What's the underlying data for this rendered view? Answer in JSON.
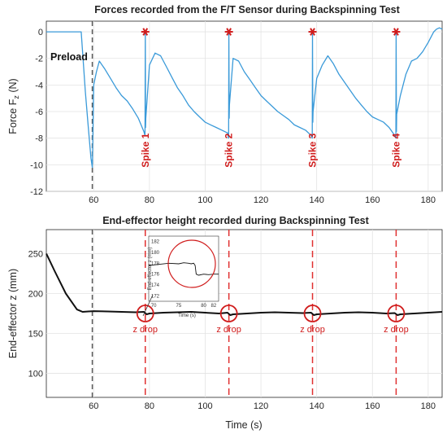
{
  "chart_data": [
    {
      "type": "line",
      "title": "Forces recorded from the F/T Sensor during Backspinning Test",
      "xlabel": "",
      "ylabel": "Force F",
      "ylabel_sub": "z",
      "ylabel_unit": " (N)",
      "xlim": [
        43,
        185
      ],
      "ylim": [
        -12,
        0.8
      ],
      "xticks": [
        60,
        80,
        100,
        120,
        140,
        160,
        180
      ],
      "yticks": [
        0,
        -2,
        -4,
        -6,
        -8,
        -10,
        -12
      ],
      "grid": true,
      "series": [
        {
          "color": "#3a9ad9",
          "x": [
            43,
            53,
            55.5,
            56,
            57,
            58,
            58.6,
            59,
            59.5,
            60,
            61,
            62,
            64,
            66,
            68,
            70,
            72,
            74,
            76,
            78,
            78.4,
            78.5,
            78.6,
            78.7,
            80,
            82,
            84,
            86,
            88,
            90,
            92,
            94,
            96,
            98,
            100,
            102,
            104,
            106,
            108,
            108.4,
            108.5,
            108.6,
            108.7,
            110,
            112,
            114,
            116,
            118,
            120,
            122,
            124,
            126,
            128,
            130,
            132,
            134,
            136,
            138,
            138.4,
            138.5,
            138.6,
            138.7,
            140,
            142,
            144,
            146,
            148,
            150,
            152,
            154,
            156,
            158,
            160,
            162,
            164,
            166,
            168,
            168.4,
            168.5,
            168.6,
            168.7,
            170,
            172,
            174,
            176,
            178,
            180,
            182,
            183,
            184,
            185
          ],
          "values": [
            0,
            0,
            0,
            -1.5,
            -4.5,
            -7,
            -8.5,
            -9.5,
            -10.2,
            -4,
            -3,
            -2.2,
            -2.8,
            -3.5,
            -4.2,
            -4.8,
            -5.2,
            -5.8,
            -6.5,
            -7.5,
            -7.8,
            0,
            -7.2,
            -6.5,
            -2.5,
            -1.6,
            -1.8,
            -2.6,
            -3.4,
            -4.2,
            -4.8,
            -5.5,
            -6,
            -6.4,
            -6.8,
            -7,
            -7.2,
            -7.4,
            -7.6,
            -8,
            0,
            -6.5,
            -5.5,
            -2,
            -2.2,
            -3,
            -3.6,
            -4.2,
            -4.8,
            -5.2,
            -5.6,
            -6,
            -6.3,
            -6.6,
            -7,
            -7.2,
            -7.4,
            -7.8,
            -8,
            0,
            -6.8,
            -6,
            -3.5,
            -2.5,
            -1.8,
            -2.4,
            -3.2,
            -3.8,
            -4.4,
            -5,
            -5.5,
            -6,
            -6.4,
            -6.6,
            -6.8,
            -7.2,
            -7.8,
            -8,
            0,
            -7.5,
            -6.2,
            -4.8,
            -3.2,
            -2.2,
            -2,
            -1.5,
            -0.8,
            0,
            0.2,
            0.3,
            0.2
          ]
        }
      ],
      "spike_x": [
        78.5,
        108.5,
        138.5,
        168.5
      ],
      "spike_labels": [
        "Spike 1",
        "Spike 2",
        "Spike 3",
        "Spike 4"
      ],
      "annotations": [
        "Preload"
      ],
      "vline_x": 59.5
    },
    {
      "type": "line",
      "title": "End-effector height recorded during Backspinning Test",
      "xlabel": "Time (s)",
      "ylabel": "End-effector z (mm)",
      "xlim": [
        43,
        185
      ],
      "ylim": [
        70,
        280
      ],
      "xticks": [
        60,
        80,
        100,
        120,
        140,
        160,
        180
      ],
      "yticks": [
        100,
        150,
        200,
        250
      ],
      "grid": true,
      "series": [
        {
          "color": "#111111",
          "x": [
            43,
            46,
            50,
            54,
            56,
            58,
            60,
            65,
            70,
            75,
            78,
            79,
            80,
            85,
            90,
            95,
            100,
            105,
            108,
            109,
            110,
            115,
            120,
            125,
            130,
            135,
            138,
            139,
            140,
            145,
            150,
            155,
            160,
            165,
            168,
            169,
            170,
            175,
            180,
            185
          ],
          "values": [
            250,
            228,
            200,
            180,
            177,
            177.5,
            178,
            177.5,
            177,
            176.5,
            177,
            174,
            175,
            176,
            176.5,
            177,
            176,
            175,
            176,
            173,
            174,
            175,
            176,
            176.5,
            176,
            175.5,
            176,
            173,
            174,
            175,
            176,
            176.5,
            176,
            175,
            175.5,
            173,
            174,
            175,
            176,
            177
          ]
        }
      ],
      "drop_x": [
        78.5,
        108.5,
        138.5,
        168.5
      ],
      "drop_labels": [
        "z drop",
        "z drop",
        "z drop",
        "z drop"
      ],
      "vline_x": 59.5,
      "inset": {
        "ylabel": "End-effector z (mm)",
        "xlabel": "Time (s)",
        "xlim": [
          69,
          83
        ],
        "ylim": [
          171,
          183
        ],
        "xticks": [
          70,
          75,
          80,
          82
        ],
        "yticks": [
          172,
          174,
          176,
          178,
          180,
          182
        ],
        "x": [
          69,
          71,
          73,
          75,
          76,
          77,
          77.5,
          78,
          78.3,
          78.5,
          79,
          80,
          81,
          82,
          83
        ],
        "values": [
          177.6,
          177.8,
          178,
          177.9,
          178.1,
          178,
          177.9,
          178,
          177.6,
          176,
          175.8,
          176,
          175.9,
          176,
          176
        ]
      }
    }
  ]
}
